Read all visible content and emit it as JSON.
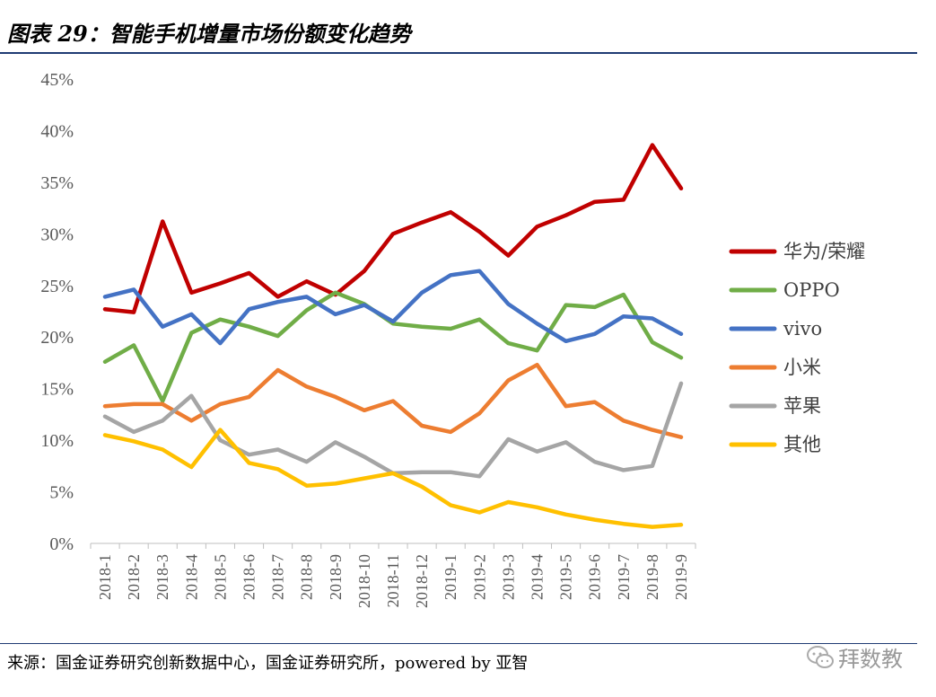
{
  "header": {
    "title": "图表 29：智能手机增量市场份额变化趋势"
  },
  "footer": {
    "source": "来源：国金证券研究创新数据中心，国金证券研究所，powered by 亚智"
  },
  "watermark": {
    "text": "拜数教"
  },
  "chart_data": {
    "type": "line",
    "categories": [
      "2018-1",
      "2018-2",
      "2018-3",
      "2018-4",
      "2018-5",
      "2018-6",
      "2018-7",
      "2018-8",
      "2018-9",
      "2018-10",
      "2018-11",
      "2018-12",
      "2019-1",
      "2019-2",
      "2019-3",
      "2019-4",
      "2019-5",
      "2019-6",
      "2019-7",
      "2019-8",
      "2019-9"
    ],
    "ylim": [
      0,
      45
    ],
    "yticks": [
      "0%",
      "5%",
      "10%",
      "15%",
      "20%",
      "25%",
      "30%",
      "35%",
      "40%",
      "45%"
    ],
    "grid": false,
    "legend_position": "right",
    "series": [
      {
        "name": "华为/荣耀",
        "color": "#c00000",
        "values": [
          22.7,
          22.4,
          31.2,
          24.3,
          25.2,
          26.2,
          23.9,
          25.4,
          24.1,
          26.4,
          30.0,
          31.1,
          32.1,
          30.2,
          27.9,
          30.7,
          31.8,
          33.1,
          33.3,
          38.6,
          34.4
        ]
      },
      {
        "name": "OPPO",
        "color": "#70ad47",
        "values": [
          17.6,
          19.2,
          13.8,
          20.4,
          21.7,
          21.0,
          20.1,
          22.6,
          24.3,
          23.2,
          21.3,
          21.0,
          20.8,
          21.7,
          19.4,
          18.7,
          23.1,
          22.9,
          24.1,
          19.5,
          18.0
        ]
      },
      {
        "name": "vivo",
        "color": "#4472c4",
        "values": [
          23.9,
          24.6,
          21.0,
          22.2,
          19.4,
          22.7,
          23.4,
          23.9,
          22.2,
          23.1,
          21.5,
          24.3,
          26.0,
          26.4,
          23.2,
          21.3,
          19.6,
          20.3,
          22.0,
          21.8,
          20.3
        ]
      },
      {
        "name": "小米",
        "color": "#ed7d31",
        "values": [
          13.3,
          13.5,
          13.5,
          11.9,
          13.5,
          14.2,
          16.8,
          15.2,
          14.2,
          12.9,
          13.8,
          11.4,
          10.8,
          12.6,
          15.8,
          17.3,
          13.3,
          13.7,
          11.9,
          11.0,
          10.3
        ]
      },
      {
        "name": "苹果",
        "color": "#a5a5a5",
        "values": [
          12.3,
          10.8,
          11.9,
          14.3,
          10.0,
          8.6,
          9.1,
          7.9,
          9.8,
          8.4,
          6.8,
          6.9,
          6.9,
          6.5,
          10.1,
          8.9,
          9.8,
          7.9,
          7.1,
          7.5,
          15.5
        ]
      },
      {
        "name": "其他",
        "color": "#ffc000",
        "values": [
          10.5,
          9.9,
          9.1,
          7.4,
          11.0,
          7.8,
          7.2,
          5.6,
          5.8,
          6.3,
          6.8,
          5.5,
          3.7,
          3.0,
          4.0,
          3.5,
          2.8,
          2.3,
          1.9,
          1.6,
          1.8
        ]
      }
    ]
  }
}
